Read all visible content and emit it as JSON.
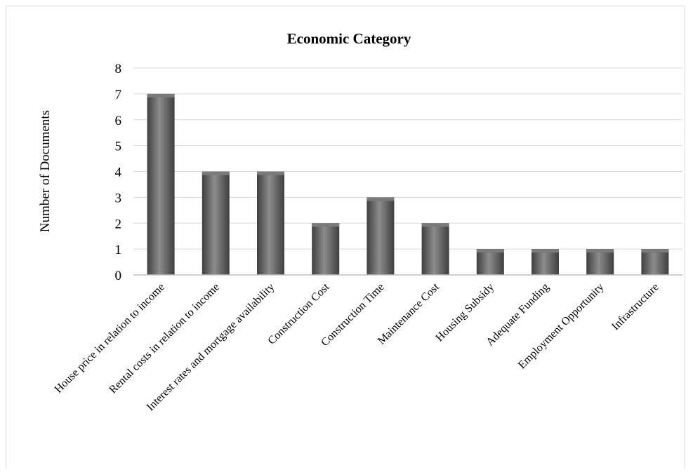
{
  "chart_data": {
    "type": "bar",
    "title": "Economic Category",
    "xlabel": "",
    "ylabel": "Number of Documents",
    "ylim": [
      0,
      8
    ],
    "yticks": [
      0,
      1,
      2,
      3,
      4,
      5,
      6,
      7,
      8
    ],
    "grid": true,
    "legend": "none",
    "categories": [
      "House price in relation to income",
      "Rental costs in relation to income",
      "Interest rates and mortgage availability",
      "Construction Cost",
      "Construction Time",
      "Maintenance Cost",
      "Housing Subsidy",
      "Adequate Funding",
      "Employment Opportunity",
      "Infrastructure"
    ],
    "values": [
      7,
      4,
      4,
      2,
      3,
      2,
      1,
      1,
      1,
      1
    ]
  },
  "colors": {
    "bar_dark": "#3f3f3f",
    "bar_mid": "#7a7a7a",
    "bar_light": "#8c8c8c",
    "grid": "#d9d9d9",
    "axis": "#bfbfbf"
  }
}
